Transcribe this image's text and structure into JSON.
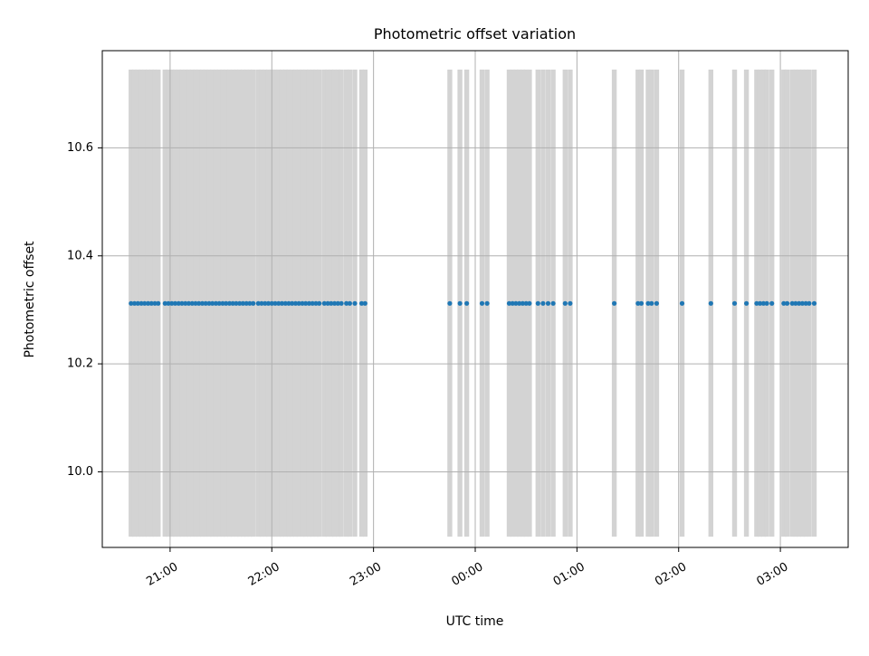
{
  "chart_data": {
    "type": "scatter",
    "title": "Photometric offset variation",
    "xlabel": "UTC time",
    "ylabel": "Photometric offset",
    "x_axis_kind": "time",
    "xlim": [
      "20:20",
      "27:40"
    ],
    "ylim": [
      9.86,
      10.78
    ],
    "grid": true,
    "x_ticks": [
      {
        "time": "21:00",
        "label": "21:00"
      },
      {
        "time": "22:00",
        "label": "22:00"
      },
      {
        "time": "23:00",
        "label": "23:00"
      },
      {
        "time": "24:00",
        "label": "00:00"
      },
      {
        "time": "25:00",
        "label": "01:00"
      },
      {
        "time": "26:00",
        "label": "02:00"
      },
      {
        "time": "27:00",
        "label": "03:00"
      }
    ],
    "y_ticks": [
      {
        "value": 10.0,
        "label": "10.0"
      },
      {
        "value": 10.2,
        "label": "10.2"
      },
      {
        "value": 10.4,
        "label": "10.4"
      },
      {
        "value": 10.6,
        "label": "10.6"
      }
    ],
    "error_band": {
      "lower": 9.88,
      "upper": 10.745,
      "color": "#d3d3d3"
    },
    "series": [
      {
        "color": "#1f77b4",
        "points": [
          {
            "time": "20:37",
            "y": 10.312
          },
          {
            "time": "20:39",
            "y": 10.312
          },
          {
            "time": "20:41",
            "y": 10.312
          },
          {
            "time": "20:43",
            "y": 10.312
          },
          {
            "time": "20:45",
            "y": 10.312
          },
          {
            "time": "20:47",
            "y": 10.312
          },
          {
            "time": "20:49",
            "y": 10.312
          },
          {
            "time": "20:51",
            "y": 10.312
          },
          {
            "time": "20:53",
            "y": 10.312
          },
          {
            "time": "20:57",
            "y": 10.312
          },
          {
            "time": "20:59",
            "y": 10.312
          },
          {
            "time": "21:01",
            "y": 10.312
          },
          {
            "time": "21:03",
            "y": 10.312
          },
          {
            "time": "21:05",
            "y": 10.312
          },
          {
            "time": "21:07",
            "y": 10.312
          },
          {
            "time": "21:09",
            "y": 10.312
          },
          {
            "time": "21:11",
            "y": 10.312
          },
          {
            "time": "21:13",
            "y": 10.312
          },
          {
            "time": "21:15",
            "y": 10.312
          },
          {
            "time": "21:17",
            "y": 10.312
          },
          {
            "time": "21:19",
            "y": 10.312
          },
          {
            "time": "21:21",
            "y": 10.312
          },
          {
            "time": "21:23",
            "y": 10.312
          },
          {
            "time": "21:25",
            "y": 10.312
          },
          {
            "time": "21:27",
            "y": 10.312
          },
          {
            "time": "21:29",
            "y": 10.312
          },
          {
            "time": "21:31",
            "y": 10.312
          },
          {
            "time": "21:33",
            "y": 10.312
          },
          {
            "time": "21:35",
            "y": 10.312
          },
          {
            "time": "21:37",
            "y": 10.312
          },
          {
            "time": "21:39",
            "y": 10.312
          },
          {
            "time": "21:41",
            "y": 10.312
          },
          {
            "time": "21:43",
            "y": 10.312
          },
          {
            "time": "21:45",
            "y": 10.312
          },
          {
            "time": "21:47",
            "y": 10.312
          },
          {
            "time": "21:49",
            "y": 10.312
          },
          {
            "time": "21:52",
            "y": 10.312
          },
          {
            "time": "21:54",
            "y": 10.312
          },
          {
            "time": "21:56",
            "y": 10.312
          },
          {
            "time": "21:58",
            "y": 10.312
          },
          {
            "time": "22:00",
            "y": 10.312
          },
          {
            "time": "22:02",
            "y": 10.312
          },
          {
            "time": "22:04",
            "y": 10.312
          },
          {
            "time": "22:06",
            "y": 10.312
          },
          {
            "time": "22:08",
            "y": 10.312
          },
          {
            "time": "22:10",
            "y": 10.312
          },
          {
            "time": "22:12",
            "y": 10.312
          },
          {
            "time": "22:14",
            "y": 10.312
          },
          {
            "time": "22:16",
            "y": 10.312
          },
          {
            "time": "22:18",
            "y": 10.312
          },
          {
            "time": "22:20",
            "y": 10.312
          },
          {
            "time": "22:22",
            "y": 10.312
          },
          {
            "time": "22:24",
            "y": 10.312
          },
          {
            "time": "22:26",
            "y": 10.312
          },
          {
            "time": "22:28",
            "y": 10.312
          },
          {
            "time": "22:31",
            "y": 10.312
          },
          {
            "time": "22:33",
            "y": 10.312
          },
          {
            "time": "22:35",
            "y": 10.312
          },
          {
            "time": "22:37",
            "y": 10.312
          },
          {
            "time": "22:39",
            "y": 10.312
          },
          {
            "time": "22:41",
            "y": 10.312
          },
          {
            "time": "22:44",
            "y": 10.312
          },
          {
            "time": "22:46",
            "y": 10.312
          },
          {
            "time": "22:49",
            "y": 10.312
          },
          {
            "time": "22:53",
            "y": 10.312
          },
          {
            "time": "22:55",
            "y": 10.312
          },
          {
            "time": "23:45",
            "y": 10.312
          },
          {
            "time": "23:51",
            "y": 10.312
          },
          {
            "time": "23:55",
            "y": 10.312
          },
          {
            "time": "24:04",
            "y": 10.312
          },
          {
            "time": "24:07",
            "y": 10.312
          },
          {
            "time": "24:20",
            "y": 10.312
          },
          {
            "time": "24:22",
            "y": 10.312
          },
          {
            "time": "24:24",
            "y": 10.312
          },
          {
            "time": "24:26",
            "y": 10.312
          },
          {
            "time": "24:28",
            "y": 10.312
          },
          {
            "time": "24:30",
            "y": 10.312
          },
          {
            "time": "24:32",
            "y": 10.312
          },
          {
            "time": "24:37",
            "y": 10.312
          },
          {
            "time": "24:40",
            "y": 10.312
          },
          {
            "time": "24:43",
            "y": 10.312
          },
          {
            "time": "24:46",
            "y": 10.312
          },
          {
            "time": "24:53",
            "y": 10.312
          },
          {
            "time": "24:56",
            "y": 10.312
          },
          {
            "time": "25:22",
            "y": 10.312
          },
          {
            "time": "25:36",
            "y": 10.312
          },
          {
            "time": "25:38",
            "y": 10.312
          },
          {
            "time": "25:42",
            "y": 10.312
          },
          {
            "time": "25:44",
            "y": 10.312
          },
          {
            "time": "25:47",
            "y": 10.312
          },
          {
            "time": "26:02",
            "y": 10.312
          },
          {
            "time": "26:19",
            "y": 10.312
          },
          {
            "time": "26:33",
            "y": 10.312
          },
          {
            "time": "26:40",
            "y": 10.312
          },
          {
            "time": "26:46",
            "y": 10.312
          },
          {
            "time": "26:48",
            "y": 10.312
          },
          {
            "time": "26:50",
            "y": 10.312
          },
          {
            "time": "26:52",
            "y": 10.312
          },
          {
            "time": "26:55",
            "y": 10.312
          },
          {
            "time": "27:02",
            "y": 10.312
          },
          {
            "time": "27:04",
            "y": 10.312
          },
          {
            "time": "27:07",
            "y": 10.312
          },
          {
            "time": "27:09",
            "y": 10.312
          },
          {
            "time": "27:11",
            "y": 10.312
          },
          {
            "time": "27:13",
            "y": 10.312
          },
          {
            "time": "27:15",
            "y": 10.312
          },
          {
            "time": "27:17",
            "y": 10.312
          },
          {
            "time": "27:20",
            "y": 10.312
          }
        ]
      }
    ]
  }
}
